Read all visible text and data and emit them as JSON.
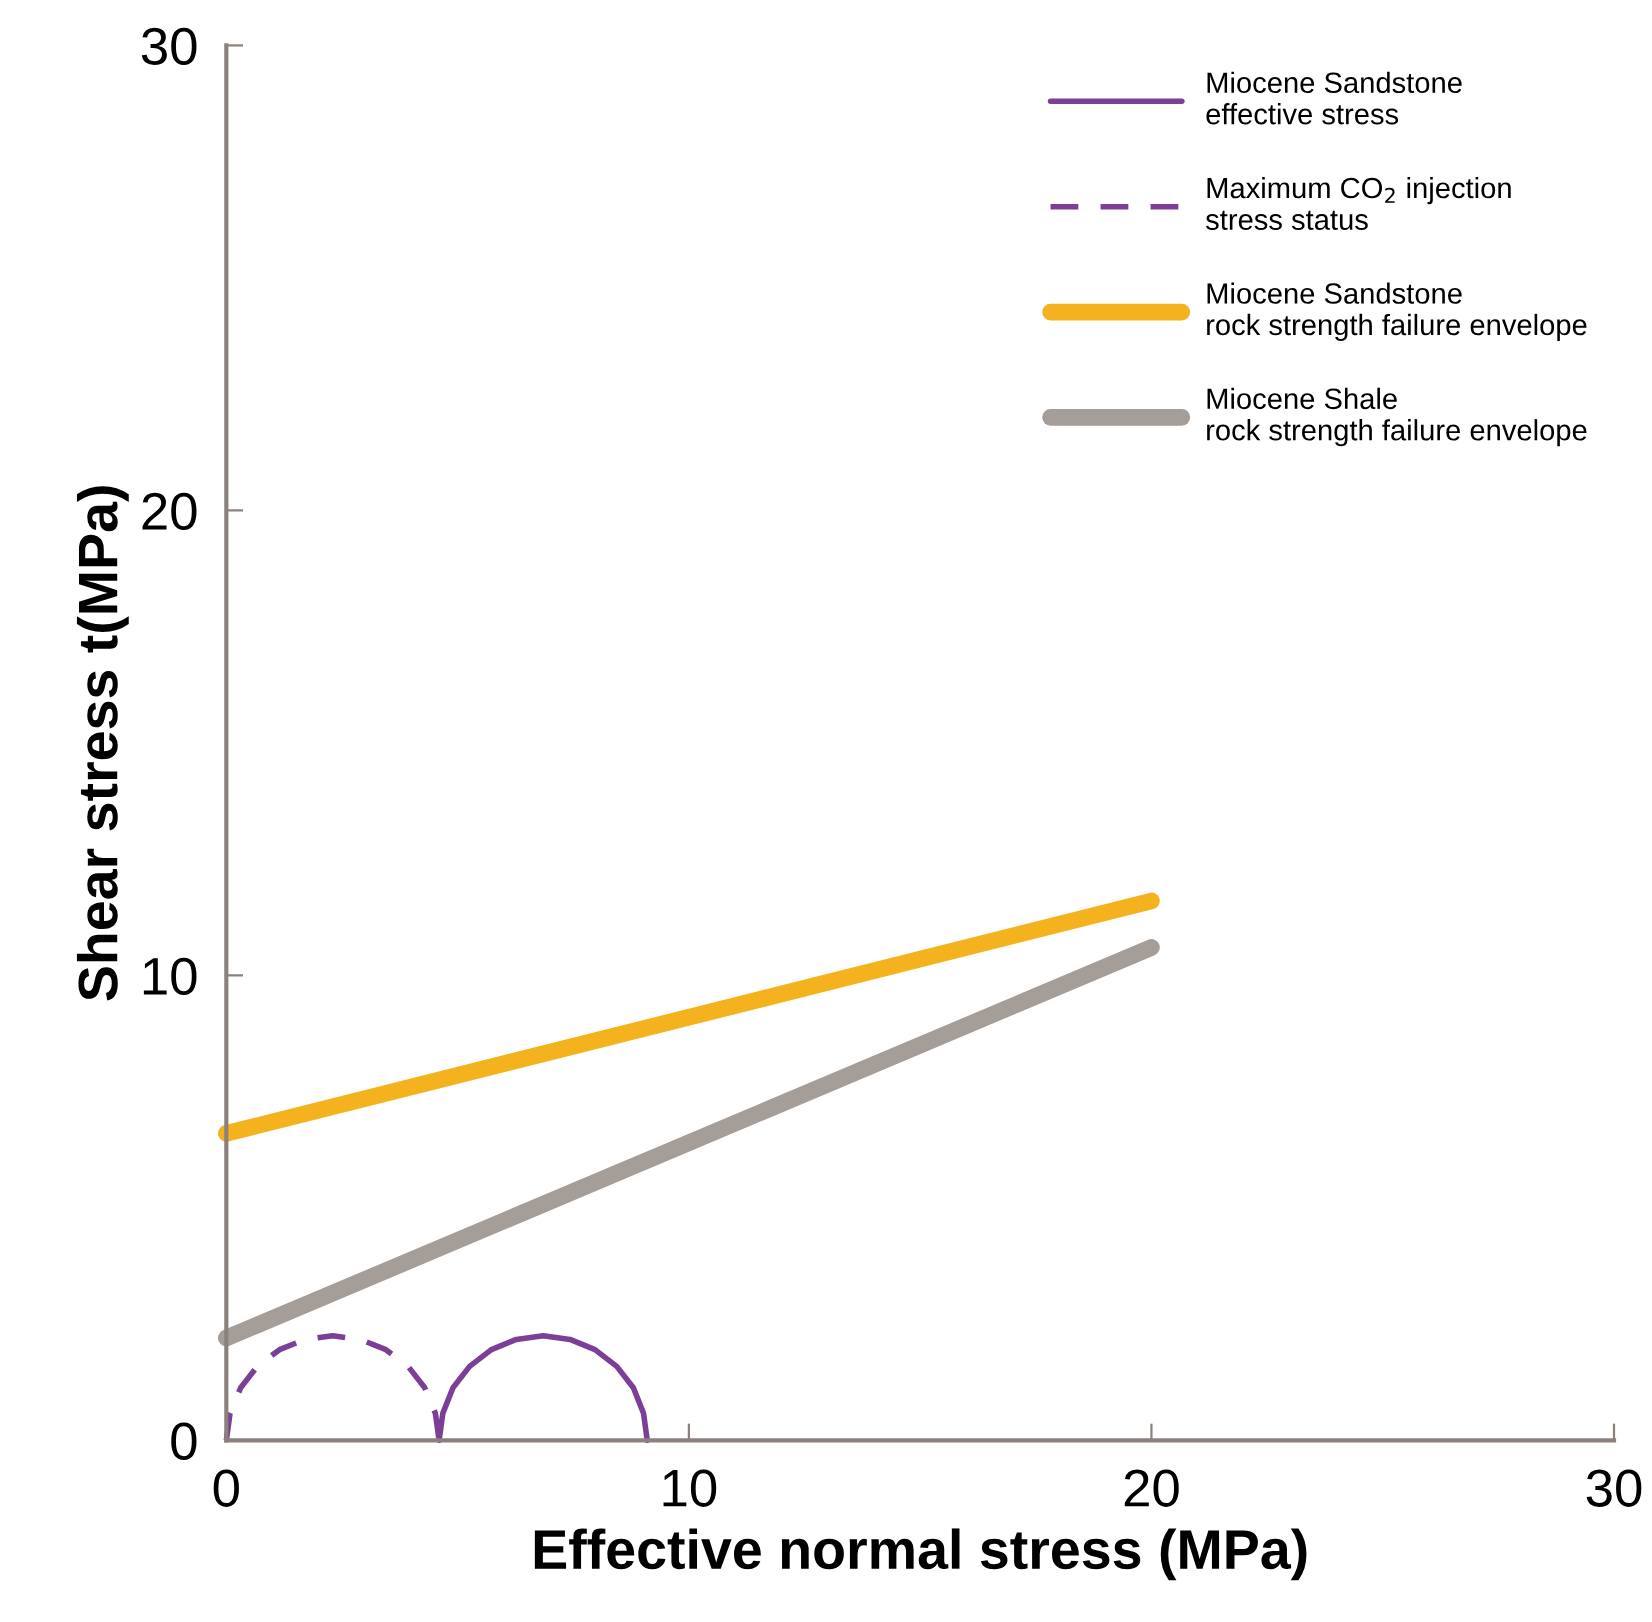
{
  "chart_data": {
    "type": "line",
    "xlabel": "Effective normal stress (MPa)",
    "ylabel": "Shear stress t(MPa)",
    "xlim": [
      0,
      30
    ],
    "ylim": [
      0,
      30
    ],
    "xticks": [
      0,
      10,
      20,
      30
    ],
    "yticks": [
      0,
      10,
      20,
      30
    ],
    "grid": false,
    "legend": "top right",
    "marker": "none",
    "series": [
      {
        "name": "Miocene Sandstone\neffective stress",
        "color": "#7b3f98",
        "line_style": "solid",
        "x": [
          4.6,
          4.68,
          4.9,
          5.26,
          5.73,
          6.27,
          6.85,
          7.43,
          7.97,
          8.44,
          8.8,
          9.02,
          9.1
        ],
        "values": [
          0,
          0.58,
          1.13,
          1.59,
          1.95,
          2.17,
          2.25,
          2.17,
          1.95,
          1.59,
          1.13,
          0.58,
          0
        ]
      },
      {
        "name": "Maximum CO$_{2}$ injection\nstress status",
        "color": "#7b3f98",
        "line_style": "dashed",
        "x": [
          0,
          0.08,
          0.31,
          0.67,
          1.15,
          1.7,
          2.3,
          2.9,
          3.45,
          3.93,
          4.29,
          4.52,
          4.6
        ],
        "values": [
          0,
          0.58,
          1.13,
          1.59,
          1.95,
          2.17,
          2.25,
          2.17,
          1.95,
          1.59,
          1.13,
          0.58,
          0
        ]
      },
      {
        "name": "Miocene Sandstone\nrock strength failure envelope",
        "color": "#f5b21f",
        "line_style": "solid",
        "x": [
          0,
          20
        ],
        "values": [
          6.6,
          11.6
        ]
      },
      {
        "name": "Miocene Shale\nrock strength failure envelope",
        "color": "#a59d98",
        "line_style": "solid",
        "x": [
          0,
          20
        ],
        "values": [
          2.2,
          10.6
        ]
      }
    ]
  }
}
